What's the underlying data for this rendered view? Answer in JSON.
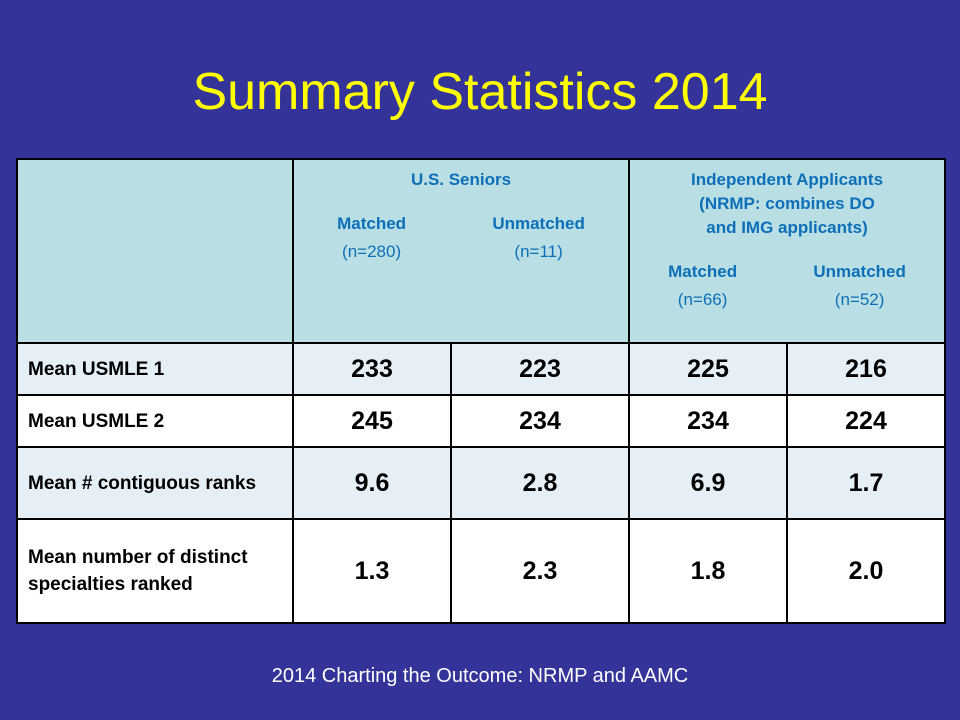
{
  "title": "Summary Statistics 2014",
  "groups": {
    "us_seniors": {
      "title": "U.S. Seniors",
      "matched_label": "Matched",
      "matched_n": "(n=280)",
      "unmatched_label": "Unmatched",
      "unmatched_n": "(n=11)"
    },
    "independent": {
      "title_line1": "Independent Applicants",
      "title_line2": "(NRMP: combines DO",
      "title_line3": "and IMG applicants)",
      "matched_label": "Matched",
      "matched_n": "(n=66)",
      "unmatched_label": "Unmatched",
      "unmatched_n": "(n=52)"
    }
  },
  "rows": [
    {
      "label": "Mean USMLE 1",
      "values": [
        "233",
        "223",
        "225",
        "216"
      ]
    },
    {
      "label": "Mean USMLE 2",
      "values": [
        "245",
        "234",
        "234",
        "224"
      ]
    },
    {
      "label": "Mean # contiguous ranks",
      "values": [
        "9.6",
        "2.8",
        "6.9",
        "1.7"
      ]
    },
    {
      "label": "Mean number of distinct specialties ranked",
      "values": [
        "1.3",
        "2.3",
        "1.8",
        "2.0"
      ]
    }
  ],
  "source": "2014 Charting the Outcome: NRMP and AAMC",
  "colors": {
    "background": "#333399",
    "title": "#ffff00",
    "header_fill": "#b9dfe4",
    "header_text": "#0d6fb8",
    "row_alt": "#e6eff5"
  }
}
